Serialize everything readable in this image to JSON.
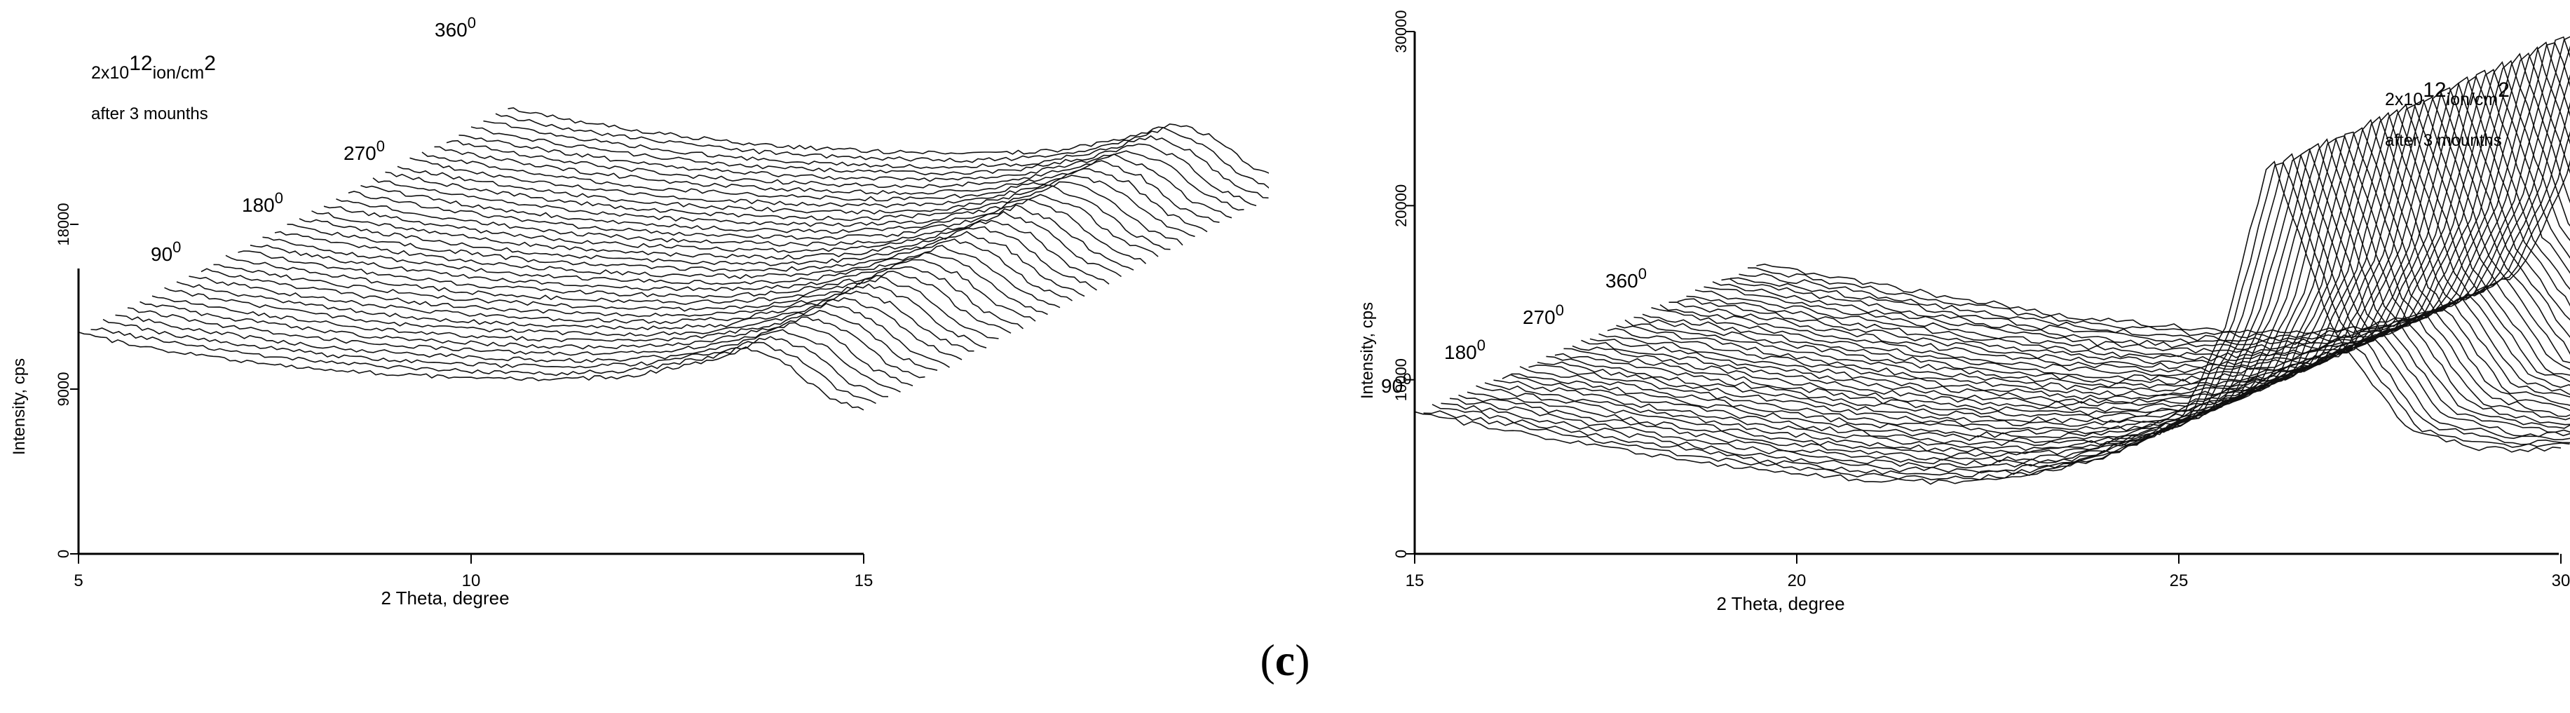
{
  "figure": {
    "caption_open": "(",
    "caption_letter": "c",
    "caption_close": ")"
  },
  "chart_data": [
    {
      "type": "line",
      "style": "3d-waterfall",
      "xlabel": "2 Theta, degree",
      "ylabel": "Intensity, cps",
      "xlim": [
        5,
        15
      ],
      "x_ticks": [
        5,
        10,
        15
      ],
      "ylim": [
        0,
        18000
      ],
      "y_ticks": [
        0,
        9000,
        18000
      ],
      "annotation": {
        "dose_prefix": "2x10",
        "dose_exp": "12",
        "dose_unit": "ion/cm",
        "dose_unit_exp": "2",
        "note": "after 3 mounths"
      },
      "angle_labels": [
        {
          "value": "90",
          "sup": "0"
        },
        {
          "value": "180",
          "sup": "0"
        },
        {
          "value": "270",
          "sup": "0"
        },
        {
          "value": "360",
          "sup": "0"
        }
      ],
      "series_count": 36,
      "representative_profile": {
        "x": [
          5,
          6,
          7,
          8,
          9,
          10,
          11,
          12,
          13,
          13.5,
          14,
          14.5,
          15
        ],
        "y": [
          12000,
          11200,
          10600,
          10100,
          9800,
          9600,
          9500,
          9700,
          10500,
          11200,
          10400,
          8700,
          7800
        ]
      }
    },
    {
      "type": "line",
      "style": "3d-waterfall",
      "xlabel": "2 Theta, degree",
      "ylabel": "Intensity, cps",
      "xlim": [
        15,
        30
      ],
      "x_ticks": [
        15,
        20,
        25,
        30
      ],
      "ylim": [
        0,
        30000
      ],
      "y_ticks": [
        0,
        10000,
        20000,
        30000
      ],
      "annotation": {
        "dose_prefix": "2x10",
        "dose_exp": "12",
        "dose_unit": "ion/cm",
        "dose_unit_exp": "2",
        "note": "after 3 mounths"
      },
      "angle_labels": [
        {
          "value": "90",
          "sup": "0"
        },
        {
          "value": "180",
          "sup": "0"
        },
        {
          "value": "270",
          "sup": "0"
        },
        {
          "value": "360",
          "sup": "0"
        }
      ],
      "series_count": 40,
      "representative_profile": {
        "x": [
          15,
          16,
          17,
          18,
          19,
          20,
          21,
          22,
          23,
          24,
          25,
          25.6,
          26.2,
          27,
          28,
          29
        ],
        "y": [
          8000,
          7300,
          6500,
          5800,
          5100,
          4600,
          4200,
          4100,
          4400,
          5500,
          7500,
          13000,
          23000,
          13000,
          7000,
          6000
        ]
      }
    }
  ]
}
